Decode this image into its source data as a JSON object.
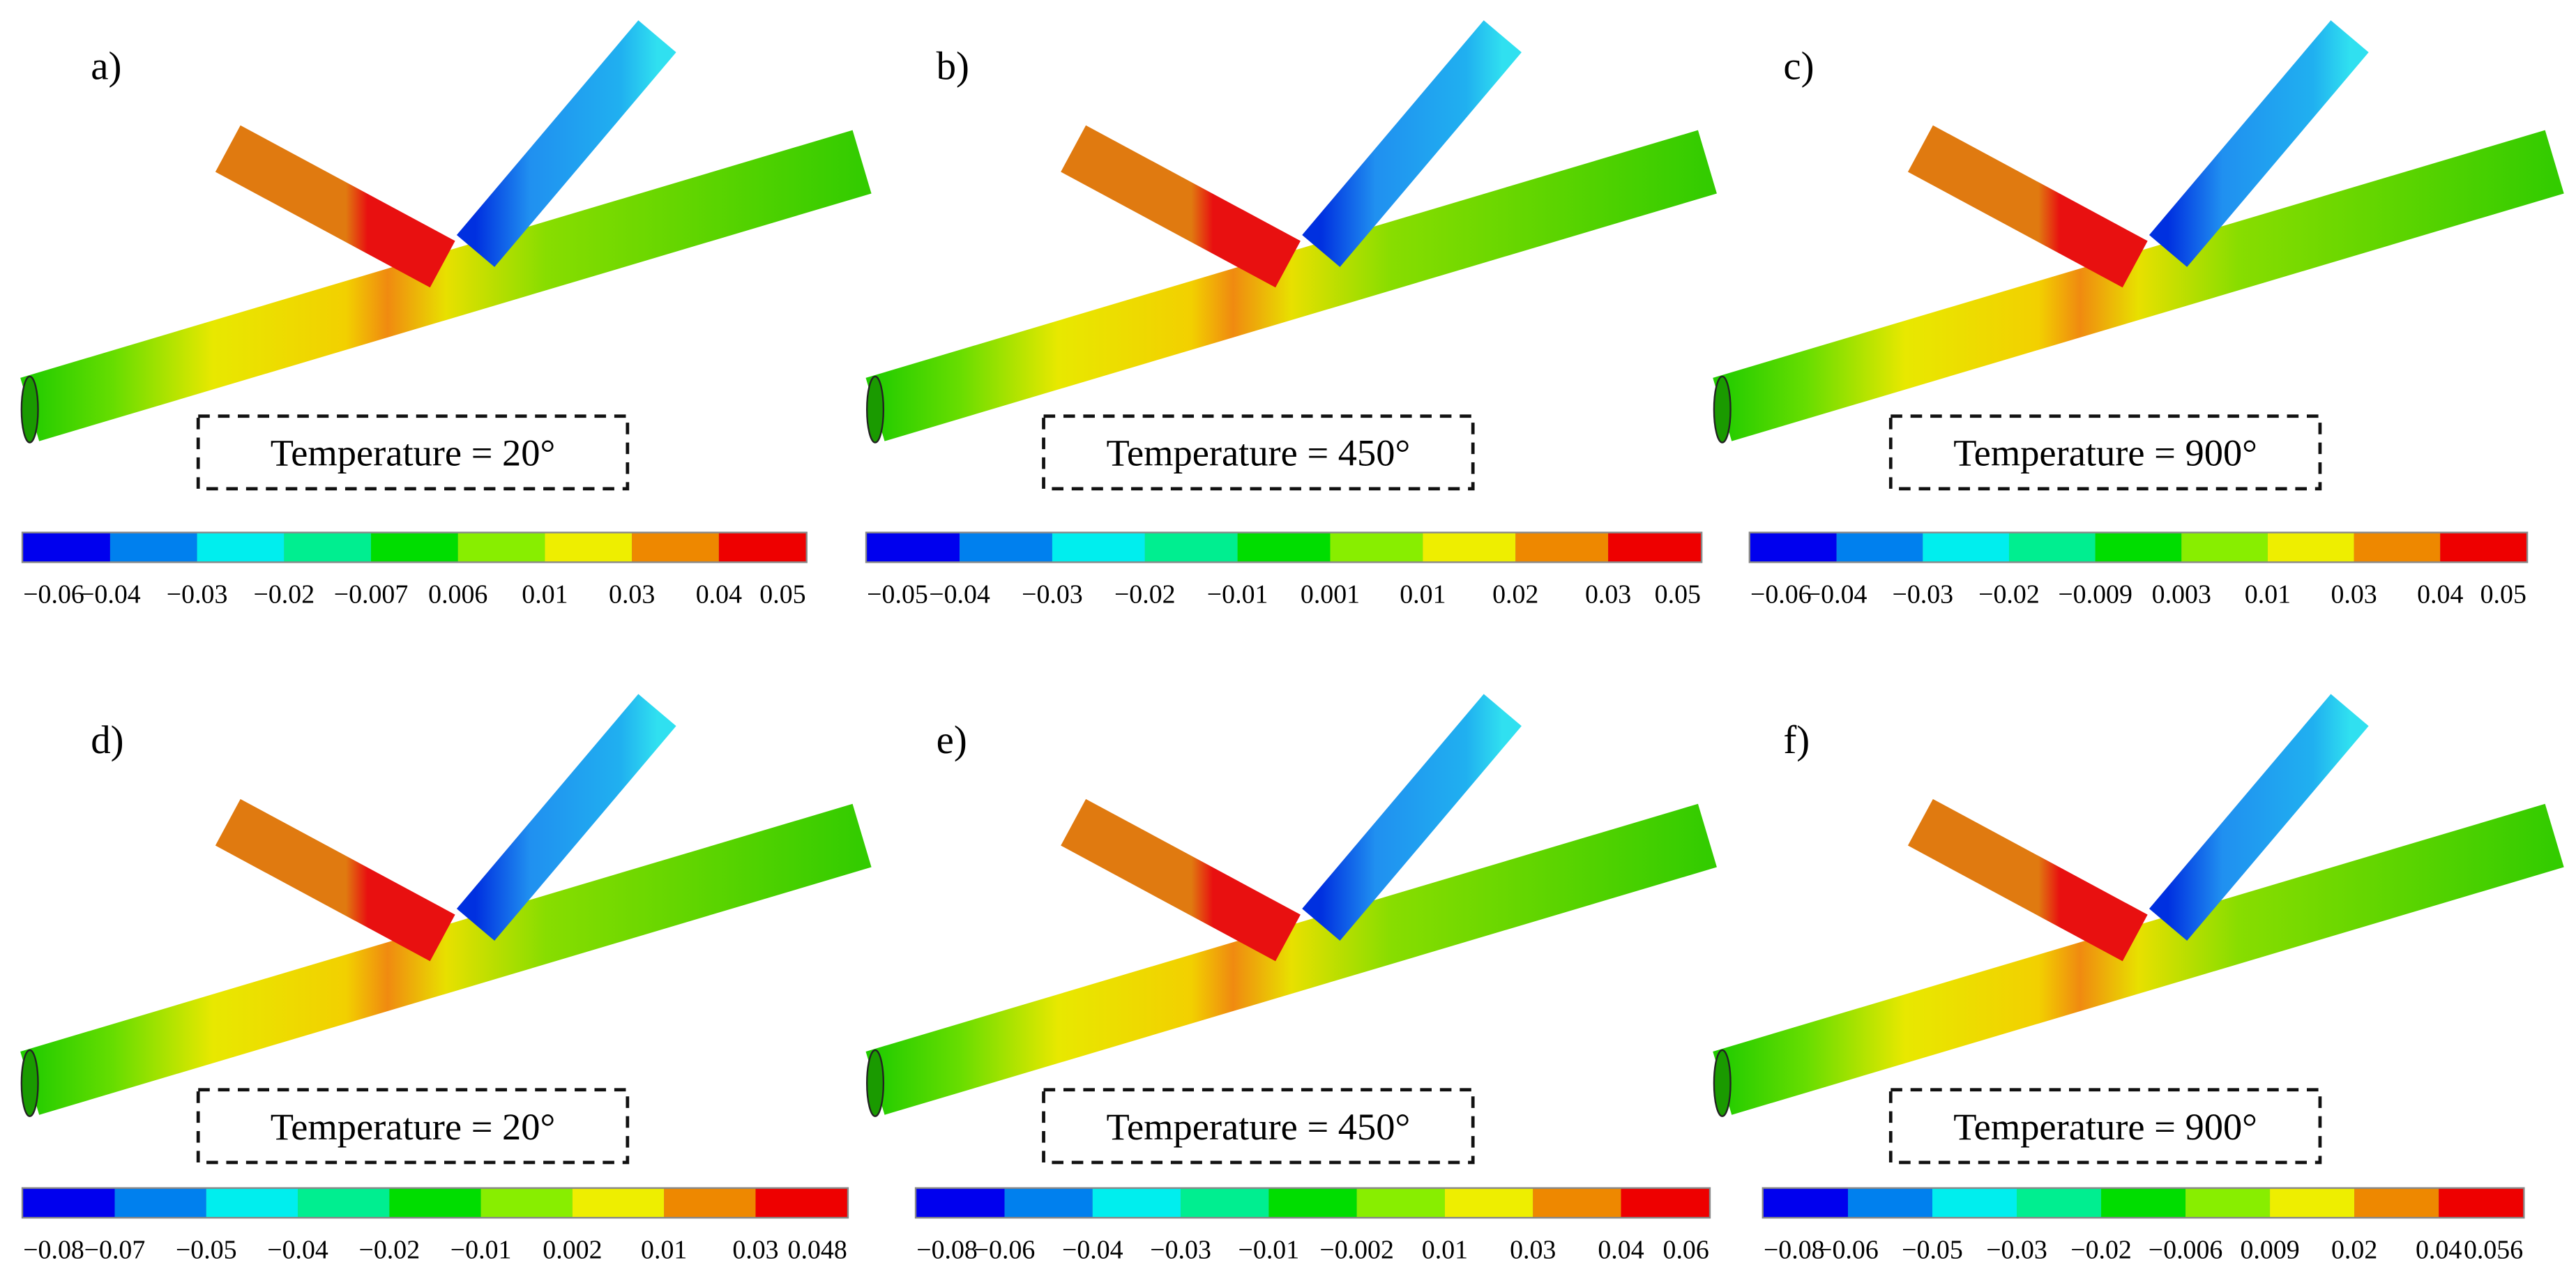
{
  "panels": [
    {
      "label": "a)",
      "caption": "Temperature = 20°",
      "ticks": [
        "−0.06",
        "−0.04",
        "−0.03",
        "−0.02",
        "−0.007",
        "0.006",
        "0.01",
        "0.03",
        "0.04",
        "0.05"
      ]
    },
    {
      "label": "b)",
      "caption": "Temperature = 450°",
      "ticks": [
        "−0.05",
        "−0.04",
        "−0.03",
        "−0.02",
        "−0.01",
        "0.001",
        "0.01",
        "0.02",
        "0.03",
        "0.05"
      ]
    },
    {
      "label": "c)",
      "caption": "Temperature = 900°",
      "ticks": [
        "−0.06",
        "−0.04",
        "−0.03",
        "−0.02",
        "−0.009",
        "0.003",
        "0.01",
        "0.03",
        "0.04",
        "0.05"
      ]
    },
    {
      "label": "d)",
      "caption": "Temperature = 20°",
      "ticks": [
        "−0.08",
        "−0.07",
        "−0.05",
        "−0.04",
        "−0.02",
        "−0.01",
        "0.002",
        "0.01",
        "0.03",
        "0.048"
      ]
    },
    {
      "label": "e)",
      "caption": "Temperature = 450°",
      "ticks": [
        "−0.08",
        "−0.06",
        "−0.04",
        "−0.03",
        "−0.01",
        "−0.002",
        "0.01",
        "0.03",
        "0.04",
        "0.06"
      ]
    },
    {
      "label": "f)",
      "caption": "Temperature = 900°",
      "ticks": [
        "−0.08",
        "−0.06",
        "−0.05",
        "−0.03",
        "−0.02",
        "−0.006",
        "0.009",
        "0.02",
        "0.04",
        "0.056"
      ]
    }
  ]
}
